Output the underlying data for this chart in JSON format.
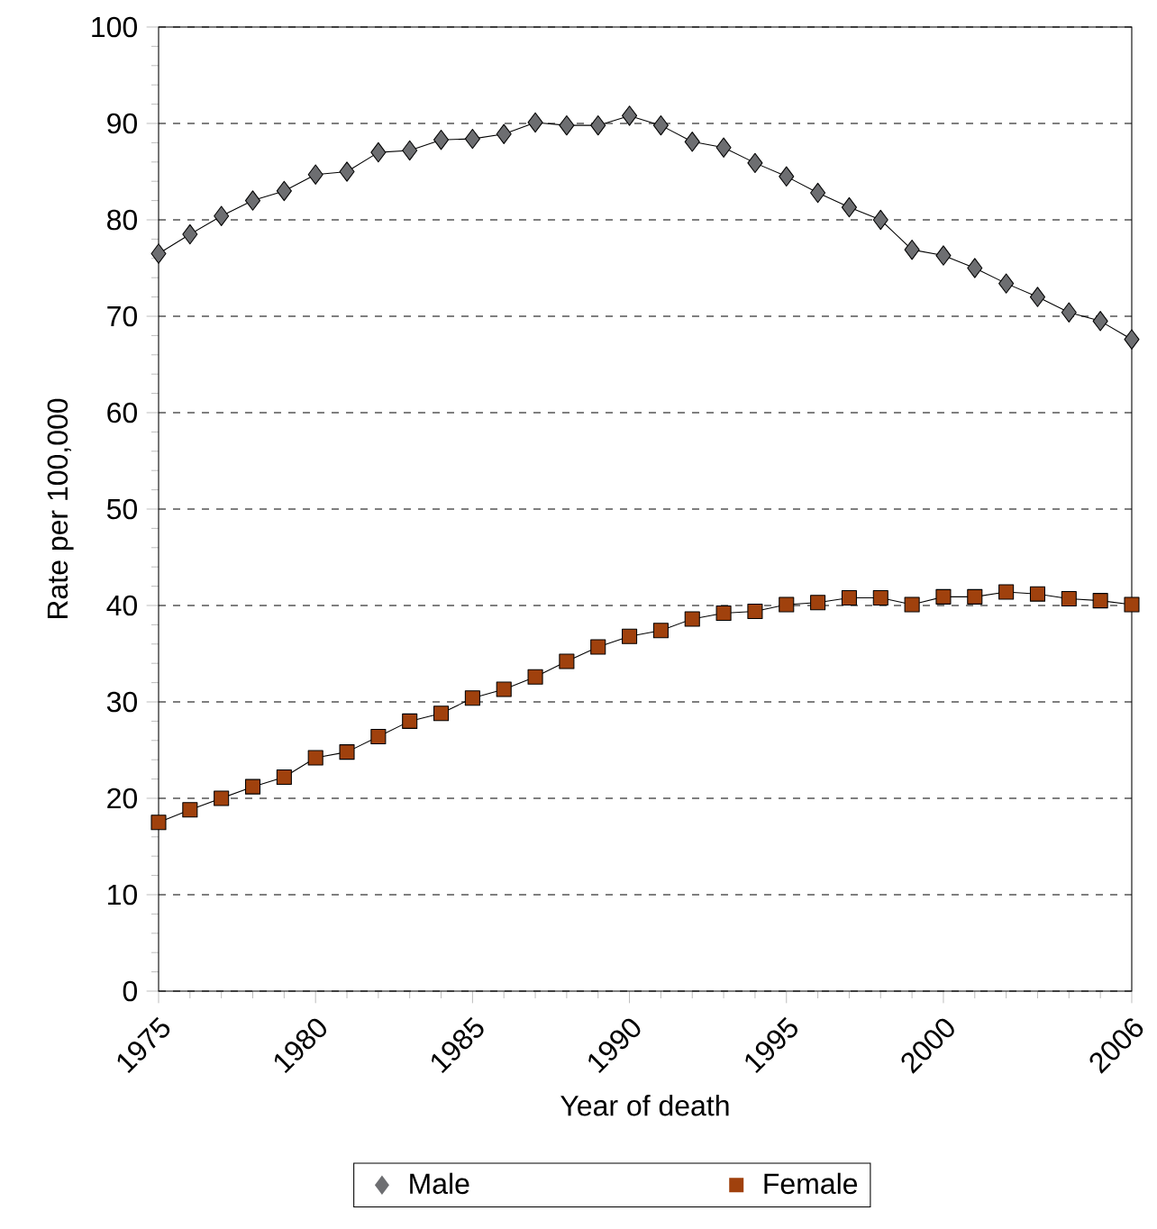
{
  "chart_data": {
    "type": "line",
    "xlabel": "Year of death",
    "ylabel": "Rate per 100,000",
    "x": [
      1975,
      1976,
      1977,
      1978,
      1979,
      1980,
      1981,
      1982,
      1983,
      1984,
      1985,
      1986,
      1987,
      1988,
      1989,
      1990,
      1991,
      1992,
      1993,
      1994,
      1995,
      1996,
      1997,
      1998,
      1999,
      2000,
      2001,
      2002,
      2003,
      2004,
      2005,
      2006
    ],
    "series": [
      {
        "name": "Male",
        "color": "#6d6e71",
        "marker": "diamond",
        "values": [
          76.5,
          78.5,
          80.4,
          82,
          83,
          84.7,
          85,
          87,
          87.2,
          88.3,
          88.4,
          88.9,
          90.1,
          89.8,
          89.8,
          90.8,
          89.8,
          88.1,
          87.5,
          85.9,
          84.5,
          82.8,
          81.3,
          80,
          76.9,
          76.3,
          75,
          73.4,
          72,
          70.4,
          69.5,
          67.6
        ]
      },
      {
        "name": "Female",
        "color": "#a0410d",
        "marker": "square",
        "values": [
          17.5,
          18.8,
          20,
          21.2,
          22.2,
          24.2,
          24.8,
          26.4,
          28,
          28.8,
          30.4,
          31.3,
          32.6,
          34.2,
          35.7,
          36.8,
          37.4,
          38.6,
          39.2,
          39.4,
          40.1,
          40.3,
          40.8,
          40.8,
          40.1,
          40.9,
          40.9,
          41.4,
          41.2,
          40.7,
          40.5,
          40.1
        ]
      }
    ],
    "xlim": [
      1975,
      2006
    ],
    "xticks": [
      1975,
      {
        "value": 1976,
        "label": null
      },
      {
        "value": 1977,
        "label": null
      },
      {
        "value": 1978,
        "label": null
      },
      {
        "value": 1979,
        "label": null
      },
      1980,
      {
        "value": 1981,
        "label": null
      },
      {
        "value": 1982,
        "label": null
      },
      {
        "value": 1983,
        "label": null
      },
      {
        "value": 1984,
        "label": null
      },
      1985,
      {
        "value": 1986,
        "label": null
      },
      {
        "value": 1987,
        "label": null
      },
      {
        "value": 1988,
        "label": null
      },
      {
        "value": 1989,
        "label": null
      },
      1990,
      {
        "value": 1991,
        "label": null
      },
      {
        "value": 1992,
        "label": null
      },
      {
        "value": 1993,
        "label": null
      },
      {
        "value": 1994,
        "label": null
      },
      1995,
      {
        "value": 1996,
        "label": null
      },
      {
        "value": 1997,
        "label": null
      },
      {
        "value": 1998,
        "label": null
      },
      {
        "value": 1999,
        "label": null
      },
      2000,
      {
        "value": 2001,
        "label": null
      },
      {
        "value": 2002,
        "label": null
      },
      {
        "value": 2003,
        "label": null
      },
      {
        "value": 2004,
        "label": null
      },
      {
        "value": 2005,
        "label": null
      },
      2006
    ],
    "ylim": [
      0,
      100
    ],
    "yticks": [
      0,
      {
        "value": 2,
        "label": null
      },
      {
        "value": 4,
        "label": null
      },
      {
        "value": 6,
        "label": null
      },
      {
        "value": 8,
        "label": null
      },
      10,
      {
        "value": 12,
        "label": null
      },
      {
        "value": 14,
        "label": null
      },
      {
        "value": 16,
        "label": null
      },
      {
        "value": 18,
        "label": null
      },
      20,
      {
        "value": 22,
        "label": null
      },
      {
        "value": 24,
        "label": null
      },
      {
        "value": 26,
        "label": null
      },
      {
        "value": 28,
        "label": null
      },
      30,
      {
        "value": 32,
        "label": null
      },
      {
        "value": 34,
        "label": null
      },
      {
        "value": 36,
        "label": null
      },
      {
        "value": 38,
        "label": null
      },
      40,
      {
        "value": 42,
        "label": null
      },
      {
        "value": 44,
        "label": null
      },
      {
        "value": 46,
        "label": null
      },
      {
        "value": 48,
        "label": null
      },
      50,
      {
        "value": 52,
        "label": null
      },
      {
        "value": 54,
        "label": null
      },
      {
        "value": 56,
        "label": null
      },
      {
        "value": 58,
        "label": null
      },
      60,
      {
        "value": 62,
        "label": null
      },
      {
        "value": 64,
        "label": null
      },
      {
        "value": 66,
        "label": null
      },
      {
        "value": 68,
        "label": null
      },
      70,
      {
        "value": 72,
        "label": null
      },
      {
        "value": 74,
        "label": null
      },
      {
        "value": 76,
        "label": null
      },
      {
        "value": 78,
        "label": null
      },
      80,
      {
        "value": 82,
        "label": null
      },
      {
        "value": 84,
        "label": null
      },
      {
        "value": 86,
        "label": null
      },
      {
        "value": 88,
        "label": null
      },
      90,
      {
        "value": 92,
        "label": null
      },
      {
        "value": 94,
        "label": null
      },
      {
        "value": 96,
        "label": null
      },
      {
        "value": 98,
        "label": null
      },
      100
    ],
    "grid": "y",
    "legend": "bottom",
    "line_style": "solid"
  }
}
